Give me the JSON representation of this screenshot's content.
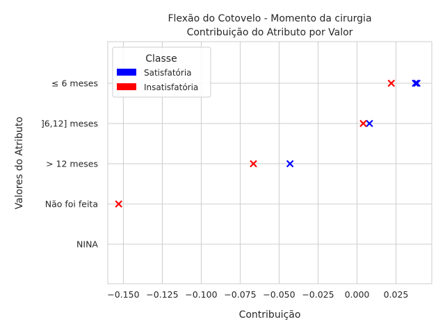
{
  "chart_data": {
    "type": "scatter",
    "title": "Flexão do Cotovelo - Momento da cirurgia",
    "subtitle": "Contribuição do Atributo por Valor",
    "xlabel": "Contribuição",
    "ylabel": "Valores do Atributo",
    "xlim": [
      -0.16,
      0.048
    ],
    "x_ticks": [
      -0.15,
      -0.125,
      -0.1,
      -0.075,
      -0.05,
      -0.025,
      0.0,
      0.025
    ],
    "x_tick_labels": [
      "−0.150",
      "−0.125",
      "−0.100",
      "−0.075",
      "−0.050",
      "−0.025",
      "0.000",
      "0.025"
    ],
    "categories": [
      "≤ 6 meses",
      "]6,12] meses",
      "> 12 meses",
      "Não foi feita",
      "NINA"
    ],
    "grid": true,
    "legend": {
      "title": "Classe",
      "position": "top-left",
      "entries": [
        {
          "name": "Satisfatória",
          "color": "#0000ff"
        },
        {
          "name": "Insatisfatória",
          "color": "#ff0000"
        }
      ]
    },
    "series": [
      {
        "name": "Satisfatória",
        "color": "#0000ff",
        "points": [
          {
            "category": "≤ 6 meses",
            "x": 0.0375
          },
          {
            "category": "≤ 6 meses",
            "x": 0.0385
          },
          {
            "category": "]6,12] meses",
            "x": 0.008
          },
          {
            "category": "> 12 meses",
            "x": -0.043
          }
        ]
      },
      {
        "name": "Insatisfatória",
        "color": "#ff0000",
        "points": [
          {
            "category": "≤ 6 meses",
            "x": 0.022
          },
          {
            "category": "]6,12] meses",
            "x": 0.004
          },
          {
            "category": "> 12 meses",
            "x": -0.0665
          },
          {
            "category": "Não foi feita",
            "x": -0.153
          }
        ]
      }
    ]
  }
}
